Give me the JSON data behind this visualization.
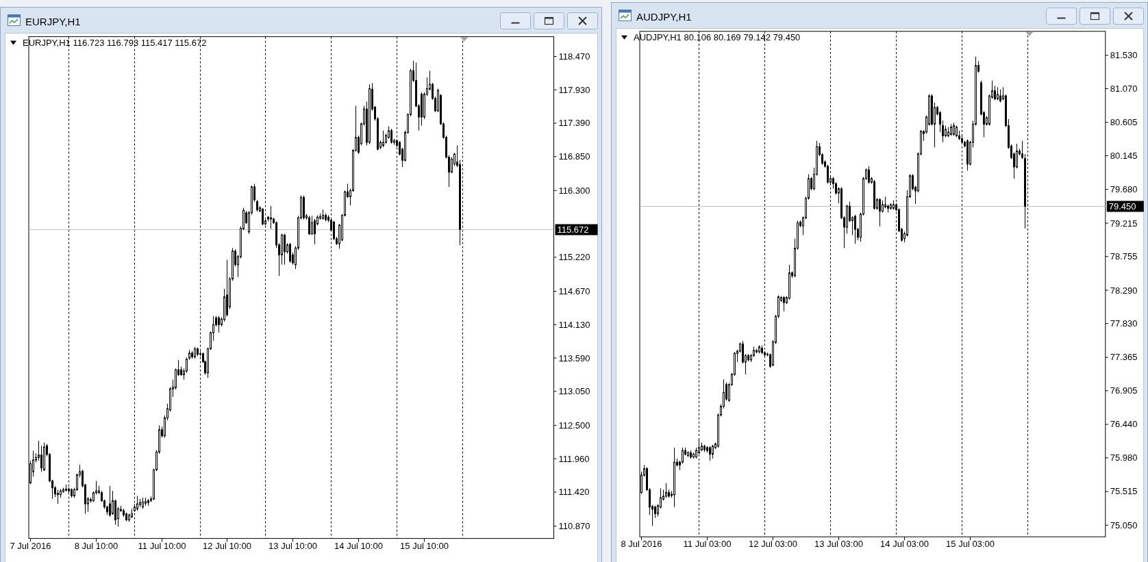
{
  "chart_data": [
    {
      "type": "candlestick",
      "title": "EURJPY,H1",
      "subtitle": "EURJPY,H1 116.723 116.793 115.417 115.672",
      "color": "#000000",
      "categories": [
        "7 Jul 2016",
        null,
        null,
        null,
        null,
        null,
        null,
        null,
        null,
        null,
        null,
        null,
        null,
        null,
        null,
        null,
        null,
        null,
        null,
        null,
        null,
        null,
        null,
        null,
        "8 Jul 10:00",
        null,
        null,
        null,
        null,
        null,
        null,
        null,
        null,
        null,
        null,
        null,
        null,
        null,
        null,
        null,
        null,
        null,
        null,
        null,
        null,
        null,
        null,
        null,
        "11 Jul 10:00",
        null,
        null,
        null,
        null,
        null,
        null,
        null,
        null,
        null,
        null,
        null,
        null,
        null,
        null,
        null,
        null,
        null,
        null,
        null,
        null,
        null,
        null,
        null,
        "12 Jul 10:00",
        null,
        null,
        null,
        null,
        null,
        null,
        null,
        null,
        null,
        null,
        null,
        null,
        null,
        null,
        null,
        null,
        null,
        null,
        null,
        null,
        null,
        null,
        null,
        "13 Jul 10:00",
        null,
        null,
        null,
        null,
        null,
        null,
        null,
        null,
        null,
        null,
        null,
        null,
        null,
        null,
        null,
        null,
        null,
        null,
        null,
        null,
        null,
        null,
        null,
        "14 Jul 10:00",
        null,
        null,
        null,
        null,
        null,
        null,
        null,
        null,
        null,
        null,
        null,
        null,
        null,
        null,
        null,
        null,
        null,
        null,
        null,
        null,
        null,
        null,
        null,
        "15 Jul 10:00",
        null,
        null,
        null,
        null,
        null,
        null,
        null,
        null,
        null,
        null,
        null,
        null,
        null,
        null,
        null,
        null,
        null,
        null,
        null,
        null,
        null,
        null,
        null,
        null,
        null,
        null,
        null,
        null,
        null,
        null,
        null,
        null,
        null,
        null,
        null,
        null,
        null,
        null,
        null,
        null,
        null,
        null,
        null,
        null,
        null,
        null,
        null
      ],
      "ohlc": [
        [
          111.57,
          111.93,
          111.55,
          111.88
        ],
        [
          111.75,
          112.09,
          111.67,
          111.94
        ],
        [
          111.94,
          112.05,
          111.9,
          111.98
        ],
        [
          111.98,
          112.25,
          111.93,
          112.02
        ],
        [
          112.02,
          112.17,
          111.75,
          111.81
        ],
        [
          111.78,
          112.22,
          111.76,
          112.15
        ],
        [
          112.17,
          112.2,
          112.0,
          112.03
        ],
        [
          112.03,
          112.05,
          111.58,
          111.6
        ],
        [
          111.6,
          111.62,
          111.31,
          111.49
        ],
        [
          111.49,
          111.52,
          111.34,
          111.39
        ],
        [
          111.4,
          111.46,
          111.23,
          111.38
        ],
        [
          111.38,
          111.47,
          111.33,
          111.44
        ],
        [
          111.43,
          111.49,
          111.41,
          111.46
        ],
        [
          111.45,
          111.54,
          111.43,
          111.47
        ],
        [
          111.47,
          111.5,
          111.4,
          111.44
        ],
        [
          111.46,
          111.48,
          111.33,
          111.36
        ],
        [
          111.36,
          111.49,
          111.33,
          111.46
        ],
        [
          111.46,
          111.72,
          111.44,
          111.7
        ],
        [
          111.7,
          111.86,
          111.66,
          111.75
        ],
        [
          111.76,
          111.78,
          111.5,
          111.52
        ],
        [
          111.54,
          111.55,
          111.07,
          111.23
        ],
        [
          111.23,
          111.34,
          111.1,
          111.31
        ],
        [
          111.28,
          111.33,
          111.25,
          111.3
        ],
        [
          111.28,
          111.43,
          111.26,
          111.41
        ],
        [
          111.41,
          111.6,
          111.38,
          111.44
        ],
        [
          111.41,
          111.52,
          111.39,
          111.44
        ],
        [
          111.41,
          111.44,
          111.26,
          111.28
        ],
        [
          111.28,
          111.3,
          111.15,
          111.18
        ],
        [
          111.18,
          111.2,
          111.05,
          111.1
        ],
        [
          111.23,
          111.52,
          111.02,
          111.05
        ],
        [
          111.07,
          111.44,
          111.05,
          111.28
        ],
        [
          111.28,
          111.3,
          110.89,
          110.97
        ],
        [
          110.99,
          111.18,
          110.86,
          111.15
        ],
        [
          111.12,
          111.2,
          111.1,
          111.14
        ],
        [
          111.12,
          111.15,
          111.02,
          111.05
        ],
        [
          111.07,
          111.09,
          110.95,
          110.97
        ],
        [
          110.97,
          111.07,
          110.94,
          111.05
        ],
        [
          111.02,
          111.15,
          111.0,
          111.07
        ],
        [
          111.12,
          111.23,
          111.1,
          111.18
        ],
        [
          111.15,
          111.36,
          111.12,
          111.23
        ],
        [
          111.22,
          111.31,
          111.18,
          111.25
        ],
        [
          111.18,
          111.33,
          111.15,
          111.26
        ],
        [
          111.24,
          111.33,
          111.2,
          111.27
        ],
        [
          111.28,
          111.31,
          111.2,
          111.25
        ],
        [
          111.28,
          111.35,
          111.26,
          111.31
        ],
        [
          111.31,
          111.8,
          111.29,
          111.78
        ],
        [
          111.78,
          112.1,
          111.76,
          112.07
        ],
        [
          112.07,
          112.5,
          112.04,
          112.43
        ],
        [
          112.43,
          112.48,
          112.3,
          112.33
        ],
        [
          112.33,
          112.66,
          112.3,
          112.62
        ],
        [
          112.62,
          112.85,
          112.58,
          112.77
        ],
        [
          112.75,
          113.12,
          112.72,
          113.09
        ],
        [
          113.09,
          113.24,
          112.96,
          113.12
        ],
        [
          113.11,
          113.42,
          113.08,
          113.4
        ],
        [
          113.4,
          113.56,
          113.3,
          113.32
        ],
        [
          113.4,
          113.45,
          113.3,
          113.32
        ],
        [
          113.32,
          113.42,
          113.24,
          113.38
        ],
        [
          113.38,
          113.6,
          113.35,
          113.57
        ],
        [
          113.59,
          113.72,
          113.56,
          113.67
        ],
        [
          113.67,
          113.7,
          113.58,
          113.61
        ],
        [
          113.61,
          113.77,
          113.58,
          113.74
        ],
        [
          113.74,
          113.76,
          113.62,
          113.65
        ],
        [
          113.66,
          113.7,
          113.62,
          113.65
        ],
        [
          113.66,
          113.68,
          113.51,
          113.53
        ],
        [
          113.53,
          113.55,
          113.32,
          113.35
        ],
        [
          113.35,
          113.76,
          113.27,
          113.74
        ],
        [
          113.74,
          114.02,
          113.72,
          114.0
        ],
        [
          114.0,
          114.27,
          113.87,
          114.13
        ],
        [
          114.24,
          114.27,
          114.1,
          114.13
        ],
        [
          114.24,
          114.27,
          114.0,
          114.13
        ],
        [
          114.13,
          114.25,
          114.1,
          114.22
        ],
        [
          114.21,
          114.71,
          114.18,
          114.58
        ],
        [
          114.61,
          115.18,
          114.26,
          114.29
        ],
        [
          114.42,
          114.9,
          114.38,
          114.87
        ],
        [
          114.87,
          115.37,
          114.84,
          115.32
        ],
        [
          115.32,
          115.35,
          115.07,
          115.1
        ],
        [
          115.1,
          115.26,
          114.9,
          115.23
        ],
        [
          115.23,
          115.72,
          115.2,
          115.69
        ],
        [
          115.68,
          116.02,
          115.66,
          115.98
        ],
        [
          115.94,
          115.97,
          115.76,
          115.78
        ],
        [
          115.63,
          115.97,
          115.6,
          115.94
        ],
        [
          115.94,
          116.38,
          115.91,
          116.36
        ],
        [
          116.36,
          116.41,
          116.12,
          116.15
        ],
        [
          116.12,
          116.15,
          115.96,
          115.99
        ],
        [
          115.97,
          116.05,
          115.95,
          116.02
        ],
        [
          116.0,
          116.02,
          115.74,
          115.76
        ],
        [
          115.76,
          115.84,
          115.74,
          115.81
        ],
        [
          115.87,
          115.89,
          115.8,
          115.84
        ],
        [
          115.84,
          116.05,
          115.68,
          115.86
        ],
        [
          115.84,
          115.86,
          115.76,
          115.78
        ],
        [
          115.78,
          115.8,
          115.37,
          115.42
        ],
        [
          115.42,
          115.45,
          114.92,
          115.26
        ],
        [
          115.26,
          115.6,
          115.1,
          115.58
        ],
        [
          115.58,
          115.6,
          115.1,
          115.31
        ],
        [
          115.31,
          115.45,
          115.28,
          115.42
        ],
        [
          115.43,
          115.45,
          115.13,
          115.16
        ],
        [
          115.26,
          115.3,
          115.1,
          115.13
        ],
        [
          115.1,
          115.4,
          115.03,
          115.37
        ],
        [
          115.37,
          115.89,
          115.34,
          115.86
        ],
        [
          115.86,
          116.22,
          115.83,
          116.19
        ],
        [
          116.19,
          116.22,
          115.83,
          115.86
        ],
        [
          115.86,
          115.92,
          115.83,
          115.89
        ],
        [
          115.86,
          115.89,
          115.58,
          115.6
        ],
        [
          115.6,
          115.89,
          115.58,
          115.78
        ],
        [
          115.81,
          115.84,
          115.43,
          115.6
        ],
        [
          115.76,
          115.9,
          115.74,
          115.87
        ],
        [
          115.85,
          115.93,
          115.83,
          115.88
        ],
        [
          115.85,
          115.99,
          115.83,
          115.9
        ],
        [
          115.9,
          115.93,
          115.8,
          115.83
        ],
        [
          115.87,
          115.9,
          115.79,
          115.82
        ],
        [
          115.82,
          115.85,
          115.64,
          115.66
        ],
        [
          115.79,
          115.81,
          115.5,
          115.52
        ],
        [
          115.52,
          115.55,
          115.42,
          115.44
        ],
        [
          115.44,
          115.76,
          115.36,
          115.74
        ],
        [
          115.5,
          115.92,
          115.48,
          115.9
        ],
        [
          115.9,
          116.3,
          115.88,
          116.28
        ],
        [
          116.28,
          116.41,
          116.18,
          116.2
        ],
        [
          116.2,
          116.33,
          116.06,
          116.3
        ],
        [
          116.3,
          116.97,
          116.28,
          116.95
        ],
        [
          116.95,
          117.67,
          116.93,
          117.16
        ],
        [
          117.16,
          117.19,
          116.89,
          116.92
        ],
        [
          117.06,
          117.4,
          117.03,
          117.38
        ],
        [
          117.38,
          117.67,
          117.35,
          117.62
        ],
        [
          117.62,
          117.74,
          117.03,
          117.08
        ],
        [
          117.08,
          118.02,
          117.05,
          117.95
        ],
        [
          117.94,
          118.04,
          117.59,
          117.62
        ],
        [
          117.65,
          117.67,
          117.43,
          117.46
        ],
        [
          117.46,
          117.49,
          116.95,
          116.97
        ],
        [
          117.0,
          117.11,
          116.97,
          117.08
        ],
        [
          117.03,
          117.27,
          117.0,
          117.08
        ],
        [
          117.08,
          117.22,
          117.06,
          117.19
        ],
        [
          117.16,
          117.34,
          117.14,
          117.27
        ],
        [
          117.27,
          117.3,
          117.06,
          117.08
        ],
        [
          117.08,
          117.14,
          117.04,
          117.11
        ],
        [
          117.11,
          117.11,
          117.0,
          117.03
        ],
        [
          117.08,
          117.1,
          116.87,
          116.89
        ],
        [
          116.97,
          116.99,
          116.68,
          116.79
        ],
        [
          116.79,
          117.27,
          116.77,
          117.24
        ],
        [
          117.24,
          117.55,
          117.22,
          117.53
        ],
        [
          117.53,
          118.27,
          117.5,
          118.24
        ],
        [
          118.24,
          118.4,
          118.06,
          118.08
        ],
        [
          118.08,
          118.37,
          117.65,
          117.67
        ],
        [
          117.67,
          117.7,
          117.27,
          117.49
        ],
        [
          117.86,
          117.89,
          117.35,
          117.49
        ],
        [
          117.49,
          117.89,
          117.46,
          117.86
        ],
        [
          117.86,
          118.13,
          117.83,
          117.95
        ],
        [
          117.94,
          118.24,
          117.92,
          118.02
        ],
        [
          118.02,
          118.04,
          117.77,
          117.79
        ],
        [
          117.79,
          117.82,
          117.57,
          117.59
        ],
        [
          117.59,
          117.95,
          117.57,
          117.92
        ],
        [
          117.84,
          117.86,
          117.36,
          117.38
        ],
        [
          117.38,
          117.4,
          117.14,
          117.16
        ],
        [
          117.16,
          117.19,
          116.82,
          116.84
        ],
        [
          116.84,
          116.87,
          116.36,
          116.6
        ],
        [
          116.6,
          116.84,
          116.58,
          116.81
        ],
        [
          116.73,
          116.91,
          116.7,
          116.89
        ],
        [
          116.76,
          117.03,
          116.68,
          116.71
        ],
        [
          116.723,
          116.793,
          115.417,
          115.672
        ],
        null,
        null,
        null,
        null,
        null,
        null,
        null,
        null,
        null,
        null,
        null,
        null,
        null,
        null,
        null,
        null,
        null,
        null,
        null,
        null,
        null,
        null,
        null,
        null,
        null,
        null,
        null,
        null,
        null,
        null,
        null,
        null,
        null,
        null
      ],
      "ylim": [
        110.67,
        118.79
      ],
      "yticks": [
        {
          "value": 118.47,
          "label": "118.470"
        },
        {
          "value": 117.93,
          "label": "117.930"
        },
        {
          "value": 117.39,
          "label": "117.390"
        },
        {
          "value": 116.85,
          "label": "116.850"
        },
        {
          "value": 116.3,
          "label": "116.300"
        },
        {
          "value": 115.22,
          "label": "115.220"
        },
        {
          "value": 114.67,
          "label": "114.670"
        },
        {
          "value": 114.13,
          "label": "114.130"
        },
        {
          "value": 113.59,
          "label": "113.590"
        },
        {
          "value": 113.05,
          "label": "113.050"
        },
        {
          "value": 112.5,
          "label": "112.500"
        },
        {
          "value": 111.96,
          "label": "111.960"
        },
        {
          "value": 111.42,
          "label": "111.420"
        },
        {
          "value": 110.87,
          "label": "110.870"
        }
      ],
      "ref_lines": [
        {
          "axis": "y",
          "value": 115.672,
          "label": "115.672",
          "color": "#c0c0c0"
        }
      ]
    },
    {
      "type": "candlestick",
      "title": "AUDJPY,H1",
      "subtitle": "AUDJPY,H1 80.106 80.169 79.142 79.450",
      "color": "#000000",
      "categories": [
        "8 Jul 2016",
        null,
        null,
        null,
        null,
        null,
        null,
        null,
        null,
        null,
        null,
        null,
        null,
        null,
        null,
        null,
        null,
        null,
        null,
        null,
        null,
        null,
        null,
        null,
        "11 Jul 03:00",
        null,
        null,
        null,
        null,
        null,
        null,
        null,
        null,
        null,
        null,
        null,
        null,
        null,
        null,
        null,
        null,
        null,
        null,
        null,
        null,
        null,
        null,
        null,
        "12 Jul 03:00",
        null,
        null,
        null,
        null,
        null,
        null,
        null,
        null,
        null,
        null,
        null,
        null,
        null,
        null,
        null,
        null,
        null,
        null,
        null,
        null,
        null,
        null,
        null,
        "13 Jul 03:00",
        null,
        null,
        null,
        null,
        null,
        null,
        null,
        null,
        null,
        null,
        null,
        null,
        null,
        null,
        null,
        null,
        null,
        null,
        null,
        null,
        null,
        null,
        null,
        "14 Jul 03:00",
        null,
        null,
        null,
        null,
        null,
        null,
        null,
        null,
        null,
        null,
        null,
        null,
        null,
        null,
        null,
        null,
        null,
        null,
        null,
        null,
        null,
        null,
        null,
        "15 Jul 03:00",
        null,
        null,
        null,
        null,
        null,
        null,
        null,
        null,
        null,
        null,
        null,
        null,
        null,
        null,
        null,
        null,
        null,
        null,
        null,
        null,
        null,
        null,
        null,
        null,
        null,
        null,
        null,
        null,
        null,
        null,
        null,
        null,
        null,
        null,
        null,
        null,
        null,
        null,
        null,
        null,
        null,
        null,
        null,
        null,
        null,
        null,
        null,
        null,
        null
      ],
      "ohlc": [
        [
          75.5,
          75.79,
          75.48,
          75.74
        ],
        [
          75.74,
          75.88,
          75.72,
          75.83
        ],
        [
          75.83,
          75.85,
          75.52,
          75.54
        ],
        [
          75.54,
          75.56,
          75.19,
          75.3
        ],
        [
          75.31,
          75.33,
          75.04,
          75.27
        ],
        [
          75.3,
          75.32,
          75.15,
          75.21
        ],
        [
          75.21,
          75.34,
          75.17,
          75.32
        ],
        [
          75.3,
          75.56,
          75.28,
          75.43
        ],
        [
          75.41,
          75.54,
          75.39,
          75.45
        ],
        [
          75.45,
          75.63,
          75.43,
          75.5
        ],
        [
          75.5,
          75.54,
          75.43,
          75.45
        ],
        [
          75.48,
          75.52,
          75.43,
          75.46
        ],
        [
          75.47,
          76.12,
          75.3,
          75.92
        ],
        [
          75.92,
          75.97,
          75.86,
          75.88
        ],
        [
          75.92,
          75.94,
          75.81,
          75.88
        ],
        [
          75.92,
          76.12,
          75.9,
          76.08
        ],
        [
          76.08,
          76.12,
          76.01,
          76.03
        ],
        [
          76.01,
          76.07,
          75.99,
          76.05
        ],
        [
          76.05,
          76.08,
          75.97,
          75.99
        ],
        [
          75.99,
          76.05,
          75.97,
          76.03
        ],
        [
          75.99,
          76.12,
          75.97,
          76.08
        ],
        [
          76.05,
          76.23,
          76.03,
          76.12
        ],
        [
          76.09,
          76.19,
          76.07,
          76.14
        ],
        [
          76.14,
          76.16,
          76.06,
          76.09
        ],
        [
          76.12,
          76.14,
          76.05,
          76.08
        ],
        [
          76.12,
          76.14,
          75.94,
          76.03
        ],
        [
          76.03,
          76.16,
          75.97,
          76.14
        ],
        [
          76.12,
          76.19,
          76.1,
          76.17
        ],
        [
          76.14,
          76.59,
          76.12,
          76.57
        ],
        [
          76.57,
          76.72,
          76.55,
          76.69
        ],
        [
          76.69,
          77.06,
          76.66,
          76.88
        ],
        [
          76.99,
          77.02,
          76.77,
          76.79
        ],
        [
          76.77,
          77.01,
          76.75,
          76.99
        ],
        [
          76.99,
          77.15,
          76.97,
          77.13
        ],
        [
          77.13,
          77.44,
          77.11,
          77.42
        ],
        [
          77.42,
          77.47,
          77.3,
          77.45
        ],
        [
          77.45,
          77.57,
          77.43,
          77.55
        ],
        [
          77.55,
          77.59,
          77.28,
          77.3
        ],
        [
          77.3,
          77.41,
          77.13,
          77.39
        ],
        [
          77.39,
          77.41,
          77.31,
          77.33
        ],
        [
          77.33,
          77.41,
          77.3,
          77.39
        ],
        [
          77.39,
          77.51,
          77.37,
          77.46
        ],
        [
          77.46,
          77.48,
          77.42,
          77.44
        ],
        [
          77.44,
          77.53,
          77.42,
          77.51
        ],
        [
          77.49,
          77.53,
          77.41,
          77.43
        ],
        [
          77.43,
          77.45,
          77.38,
          77.4
        ],
        [
          77.41,
          77.43,
          77.38,
          77.4
        ],
        [
          77.4,
          77.42,
          77.22,
          77.24
        ],
        [
          77.26,
          77.6,
          77.24,
          77.58
        ],
        [
          77.57,
          77.95,
          77.55,
          77.93
        ],
        [
          77.93,
          78.22,
          77.91,
          78.2
        ],
        [
          78.15,
          78.21,
          78.13,
          78.19
        ],
        [
          78.19,
          78.21,
          78.0,
          78.12
        ],
        [
          78.12,
          78.21,
          78.1,
          78.19
        ],
        [
          78.18,
          78.64,
          78.16,
          78.53
        ],
        [
          78.53,
          78.55,
          78.46,
          78.49
        ],
        [
          78.49,
          79.0,
          78.47,
          78.87
        ],
        [
          78.87,
          79.25,
          78.85,
          79.22
        ],
        [
          79.23,
          79.25,
          79.16,
          79.18
        ],
        [
          79.18,
          79.31,
          79.05,
          79.29
        ],
        [
          79.29,
          79.58,
          79.27,
          79.56
        ],
        [
          79.56,
          79.89,
          79.54,
          79.83
        ],
        [
          79.83,
          79.85,
          79.67,
          79.69
        ],
        [
          79.69,
          79.98,
          79.67,
          79.89
        ],
        [
          79.89,
          80.35,
          79.87,
          80.27
        ],
        [
          80.27,
          80.32,
          80.14,
          80.16
        ],
        [
          80.16,
          80.18,
          80.02,
          80.04
        ],
        [
          80.06,
          80.08,
          79.98,
          80.0
        ],
        [
          80.0,
          80.02,
          79.76,
          79.78
        ],
        [
          79.78,
          79.87,
          79.76,
          79.83
        ],
        [
          79.83,
          79.85,
          79.69,
          79.76
        ],
        [
          79.76,
          79.78,
          79.61,
          79.63
        ],
        [
          79.63,
          79.71,
          79.49,
          79.69
        ],
        [
          79.69,
          79.71,
          79.27,
          79.29
        ],
        [
          79.29,
          79.31,
          78.87,
          79.16
        ],
        [
          79.16,
          79.47,
          79.07,
          79.45
        ],
        [
          79.45,
          79.51,
          79.23,
          79.25
        ],
        [
          79.25,
          79.31,
          79.05,
          79.29
        ],
        [
          79.31,
          79.33,
          78.93,
          79.13
        ],
        [
          79.13,
          79.15,
          78.98,
          79.02
        ],
        [
          79.02,
          79.36,
          78.96,
          79.34
        ],
        [
          79.34,
          79.85,
          79.32,
          79.83
        ],
        [
          79.83,
          79.97,
          79.81,
          79.95
        ],
        [
          79.95,
          80.0,
          79.76,
          79.78
        ],
        [
          79.78,
          79.85,
          79.76,
          79.83
        ],
        [
          79.79,
          79.81,
          79.4,
          79.42
        ],
        [
          79.42,
          79.56,
          79.4,
          79.54
        ],
        [
          79.54,
          79.56,
          79.17,
          79.38
        ],
        [
          79.38,
          79.53,
          79.36,
          79.47
        ],
        [
          79.44,
          79.58,
          79.42,
          79.47
        ],
        [
          79.45,
          79.47,
          79.36,
          79.42
        ],
        [
          79.42,
          79.49,
          79.4,
          79.47
        ],
        [
          79.42,
          79.53,
          79.4,
          79.47
        ],
        [
          79.47,
          79.49,
          79.38,
          79.4
        ],
        [
          79.4,
          79.42,
          79.09,
          79.11
        ],
        [
          79.13,
          79.15,
          78.96,
          78.98
        ],
        [
          79.0,
          79.1,
          78.95,
          79.07
        ],
        [
          79.05,
          79.67,
          79.03,
          79.58
        ],
        [
          79.58,
          79.89,
          79.56,
          79.87
        ],
        [
          79.87,
          79.89,
          79.67,
          79.69
        ],
        [
          79.71,
          79.73,
          79.48,
          79.66
        ],
        [
          79.66,
          80.19,
          79.64,
          80.17
        ],
        [
          80.17,
          80.5,
          80.15,
          80.48
        ],
        [
          80.48,
          80.5,
          80.35,
          80.45
        ],
        [
          80.47,
          80.7,
          80.45,
          80.68
        ],
        [
          80.58,
          80.99,
          80.56,
          80.97
        ],
        [
          80.97,
          80.99,
          80.56,
          80.58
        ],
        [
          80.58,
          80.88,
          80.26,
          80.81
        ],
        [
          80.81,
          80.83,
          80.7,
          80.72
        ],
        [
          80.74,
          80.76,
          80.47,
          80.58
        ],
        [
          80.56,
          80.63,
          80.33,
          80.42
        ],
        [
          80.42,
          80.56,
          80.4,
          80.51
        ],
        [
          80.42,
          80.54,
          80.4,
          80.47
        ],
        [
          80.44,
          80.58,
          80.42,
          80.54
        ],
        [
          80.44,
          80.6,
          80.42,
          80.56
        ],
        [
          80.42,
          80.56,
          80.4,
          80.54
        ],
        [
          80.42,
          80.49,
          80.36,
          80.38
        ],
        [
          80.38,
          80.42,
          80.31,
          80.33
        ],
        [
          80.33,
          80.35,
          80.26,
          80.28
        ],
        [
          80.35,
          80.37,
          79.94,
          80.03
        ],
        [
          80.03,
          80.35,
          80.01,
          80.33
        ],
        [
          80.33,
          80.63,
          80.26,
          80.58
        ],
        [
          80.58,
          81.51,
          80.56,
          81.39
        ],
        [
          81.39,
          81.45,
          81.29,
          81.31
        ],
        [
          81.15,
          81.18,
          80.7,
          80.72
        ],
        [
          80.74,
          80.76,
          80.4,
          80.58
        ],
        [
          80.58,
          80.69,
          80.56,
          80.67
        ],
        [
          80.58,
          80.99,
          80.56,
          80.97
        ],
        [
          80.95,
          81.18,
          80.93,
          81.04
        ],
        [
          81.04,
          81.11,
          80.91,
          80.93
        ],
        [
          80.93,
          81.09,
          80.91,
          80.99
        ],
        [
          80.97,
          81.06,
          80.88,
          80.9
        ],
        [
          80.93,
          81.09,
          80.91,
          80.97
        ],
        [
          80.97,
          80.99,
          80.54,
          80.56
        ],
        [
          80.56,
          80.65,
          80.24,
          80.26
        ],
        [
          80.28,
          80.3,
          80.1,
          80.12
        ],
        [
          80.17,
          80.19,
          79.83,
          79.99
        ],
        [
          79.99,
          80.31,
          79.97,
          80.21
        ],
        [
          80.21,
          80.24,
          80.15,
          80.17
        ],
        [
          80.17,
          80.35,
          80.1,
          80.12
        ],
        [
          80.106,
          80.169,
          79.142,
          79.45
        ],
        null,
        null,
        null,
        null,
        null,
        null,
        null,
        null,
        null,
        null,
        null,
        null,
        null,
        null,
        null,
        null,
        null,
        null,
        null,
        null,
        null,
        null,
        null,
        null,
        null,
        null,
        null,
        null,
        null
      ],
      "ylim": [
        74.89,
        81.86
      ],
      "yticks": [
        {
          "value": 81.53,
          "label": "81.530"
        },
        {
          "value": 81.07,
          "label": "81.070"
        },
        80.605,
        80.145,
        {
          "value": 79.68,
          "label": "79.680"
        },
        79.215,
        78.755,
        {
          "value": 78.29,
          "label": "78.290"
        },
        {
          "value": 77.83,
          "label": "77.830"
        },
        77.365,
        76.905,
        {
          "value": 76.44,
          "label": "76.440"
        },
        {
          "value": 75.98,
          "label": "75.980"
        },
        75.515,
        {
          "value": 75.05,
          "label": "75.050"
        }
      ],
      "ref_lines": [
        {
          "axis": "y",
          "value": 79.45,
          "label": "79.450",
          "color": "#c0c0c0"
        }
      ]
    }
  ]
}
